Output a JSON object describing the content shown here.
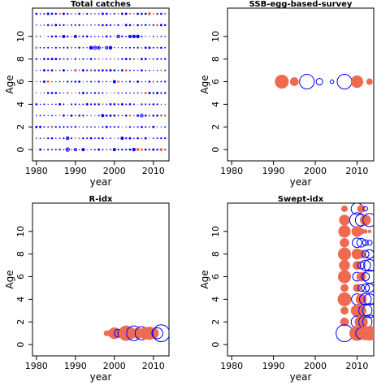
{
  "chart_data": [
    {
      "type": "scatter",
      "title": "Total catches",
      "xlabel": "year",
      "ylabel": "Age",
      "xlim": [
        1979,
        2014
      ],
      "ylim": [
        -1,
        12.5
      ],
      "xticks": [
        1980,
        1990,
        2000,
        2010
      ],
      "yticks": [
        0,
        2,
        4,
        6,
        8,
        10
      ],
      "x": [
        1980,
        1981,
        1982,
        1983,
        1984,
        1985,
        1986,
        1987,
        1988,
        1989,
        1990,
        1991,
        1992,
        1993,
        1994,
        1995,
        1996,
        1997,
        1998,
        1999,
        2000,
        2001,
        2002,
        2003,
        2004,
        2005,
        2006,
        2007,
        2008,
        2009,
        2010,
        2011,
        2012,
        2013
      ],
      "ages": [
        0,
        1,
        2,
        3,
        4,
        5,
        6,
        7,
        8,
        9,
        10,
        11,
        12
      ],
      "series": [
        {
          "values": [
            [
              1980,
              12,
              0.12,
              1
            ],
            [
              1983,
              12,
              0.22,
              1
            ],
            [
              1987,
              10,
              0.3,
              1
            ],
            [
              1988,
              0,
              0.45,
              1
            ],
            [
              1988,
              1,
              0.35,
              1
            ],
            [
              1990,
              0,
              0.3,
              1
            ],
            [
              1990,
              10,
              0.3,
              1
            ],
            [
              1992,
              0,
              0.3,
              1
            ],
            [
              1994,
              9,
              0.35,
              1
            ],
            [
              1995,
              9,
              0.4,
              1
            ],
            [
              1996,
              9,
              0.35,
              1
            ],
            [
              1997,
              3,
              0.3,
              1
            ],
            [
              1998,
              9,
              0.3,
              1
            ],
            [
              1999,
              9,
              0.35,
              1
            ],
            [
              2000,
              6,
              0.3,
              1
            ],
            [
              2000,
              0,
              0.3,
              1
            ],
            [
              2001,
              10,
              0.35,
              1
            ],
            [
              2002,
              1,
              0.3,
              1
            ],
            [
              2004,
              10,
              0.3,
              1
            ],
            [
              2005,
              0,
              0.35,
              1
            ],
            [
              2005,
              10,
              0.35,
              1
            ],
            [
              2006,
              10,
              0.35,
              1
            ],
            [
              2007,
              3,
              0.35,
              1
            ],
            [
              2012,
              0,
              0.3,
              -1
            ],
            [
              2009,
              12,
              0.3,
              -1
            ],
            [
              2006,
              0,
              0.3,
              -1
            ],
            [
              1990,
              7,
              0.25,
              -1
            ]
          ]
        }
      ]
    },
    {
      "type": "scatter",
      "title": "SSB-egg-based-survey",
      "xlabel": "year",
      "ylabel": "Age",
      "xlim": [
        1979,
        2014
      ],
      "ylim": [
        -1,
        12.5
      ],
      "xticks": [
        1980,
        1990,
        2000,
        2010
      ],
      "yticks": [
        0,
        2,
        4,
        6,
        8,
        10
      ],
      "series": [
        {
          "values": [
            [
              1992,
              6,
              0.9,
              -1
            ],
            [
              1995,
              6,
              0.55,
              -1
            ],
            [
              1998,
              6,
              1.0,
              1
            ],
            [
              2001,
              6,
              0.45,
              1
            ],
            [
              2004,
              6,
              0.25,
              1
            ],
            [
              2007,
              6,
              1.0,
              1
            ],
            [
              2010,
              6,
              0.8,
              -1
            ],
            [
              2013,
              6,
              0.4,
              -1
            ]
          ]
        }
      ]
    },
    {
      "type": "scatter",
      "title": "R-idx",
      "xlabel": "year",
      "ylabel": "Age",
      "xlim": [
        1979,
        2014
      ],
      "ylim": [
        -1,
        12.5
      ],
      "xticks": [
        1980,
        1990,
        2000,
        2010
      ],
      "yticks": [
        0,
        2,
        4,
        6,
        8,
        10
      ],
      "series": [
        {
          "values": [
            [
              1998,
              1,
              0.35,
              -1
            ],
            [
              1999,
              1,
              0.45,
              -1
            ],
            [
              2000,
              1,
              0.75,
              -1
            ],
            [
              2001,
              1,
              0.55,
              1
            ],
            [
              2002,
              1,
              0.6,
              1
            ],
            [
              2003,
              1,
              1.0,
              -1
            ],
            [
              2004,
              1,
              0.8,
              -1
            ],
            [
              2005,
              1,
              1.0,
              1
            ],
            [
              2006,
              1,
              0.7,
              -1
            ],
            [
              2007,
              1,
              0.9,
              1
            ],
            [
              2008,
              1,
              0.8,
              -1
            ],
            [
              2009,
              1,
              0.85,
              -1
            ],
            [
              2010,
              1,
              0.7,
              -1
            ],
            [
              2011,
              1,
              0.75,
              1
            ],
            [
              2012,
              1,
              1.15,
              1
            ]
          ]
        }
      ]
    },
    {
      "type": "scatter",
      "title": "Swept-idx",
      "xlabel": "year",
      "ylabel": "Age",
      "xlim": [
        1979,
        2014
      ],
      "ylim": [
        -1,
        12.5
      ],
      "xticks": [
        1980,
        1990,
        2000,
        2010
      ],
      "yticks": [
        0,
        2,
        4,
        6,
        8,
        10
      ],
      "series": [
        {
          "values": [
            [
              2007,
              12,
              0.4,
              -1
            ],
            [
              2010,
              12,
              0.8,
              1
            ],
            [
              2011,
              12,
              0.5,
              -1
            ],
            [
              2012,
              12,
              0.3,
              1
            ],
            [
              2007,
              11,
              0.7,
              -1
            ],
            [
              2010,
              11,
              1.0,
              1
            ],
            [
              2011,
              11,
              0.8,
              1
            ],
            [
              2012,
              11,
              0.7,
              -1
            ],
            [
              2013,
              11,
              0.9,
              1
            ],
            [
              2007,
              10,
              0.8,
              -1
            ],
            [
              2010,
              10,
              0.7,
              -1
            ],
            [
              2011,
              10,
              0.4,
              -1
            ],
            [
              2012,
              10,
              0.25,
              -1
            ],
            [
              2013,
              10,
              0.2,
              -1
            ],
            [
              2007,
              9,
              0.6,
              -1
            ],
            [
              2010,
              9,
              0.65,
              1
            ],
            [
              2011,
              9,
              0.6,
              1
            ],
            [
              2012,
              9,
              0.4,
              1
            ],
            [
              2013,
              9,
              0.35,
              1
            ],
            [
              2007,
              8,
              0.85,
              -1
            ],
            [
              2010,
              8,
              0.7,
              -1
            ],
            [
              2011,
              8,
              0.55,
              -1
            ],
            [
              2012,
              8,
              0.5,
              1
            ],
            [
              2013,
              8,
              0.6,
              1
            ],
            [
              2007,
              7,
              0.7,
              -1
            ],
            [
              2010,
              7,
              0.55,
              -1
            ],
            [
              2011,
              7,
              0.5,
              1
            ],
            [
              2012,
              7,
              0.7,
              1
            ],
            [
              2013,
              7,
              0.8,
              1
            ],
            [
              2007,
              6,
              0.85,
              -1
            ],
            [
              2010,
              6,
              0.6,
              1
            ],
            [
              2011,
              6,
              0.6,
              -1
            ],
            [
              2012,
              6,
              0.55,
              1
            ],
            [
              2013,
              6,
              0.9,
              1
            ],
            [
              2007,
              5,
              0.5,
              -1
            ],
            [
              2010,
              5,
              0.5,
              -1
            ],
            [
              2011,
              5,
              0.45,
              1
            ],
            [
              2012,
              5,
              0.55,
              1
            ],
            [
              2013,
              5,
              0.6,
              1
            ],
            [
              2007,
              4,
              0.9,
              -1
            ],
            [
              2010,
              4,
              0.75,
              1
            ],
            [
              2011,
              4,
              0.7,
              -1
            ],
            [
              2012,
              4,
              0.8,
              1
            ],
            [
              2013,
              4,
              0.75,
              1
            ],
            [
              2007,
              3,
              0.5,
              -1
            ],
            [
              2010,
              3,
              0.8,
              -1
            ],
            [
              2011,
              3,
              0.65,
              -1
            ],
            [
              2012,
              3,
              0.9,
              1
            ],
            [
              2013,
              3,
              0.95,
              1
            ],
            [
              2007,
              2,
              0.55,
              -1
            ],
            [
              2010,
              2,
              0.8,
              1
            ],
            [
              2011,
              2,
              0.85,
              -1
            ],
            [
              2012,
              2,
              0.9,
              1
            ],
            [
              2013,
              2,
              0.95,
              1
            ],
            [
              2007,
              1,
              1.15,
              1
            ],
            [
              2010,
              1,
              1.0,
              -1
            ],
            [
              2011,
              1,
              0.75,
              1
            ],
            [
              2012,
              1,
              0.9,
              -1
            ],
            [
              2013,
              1,
              0.95,
              -1
            ]
          ]
        }
      ]
    }
  ]
}
